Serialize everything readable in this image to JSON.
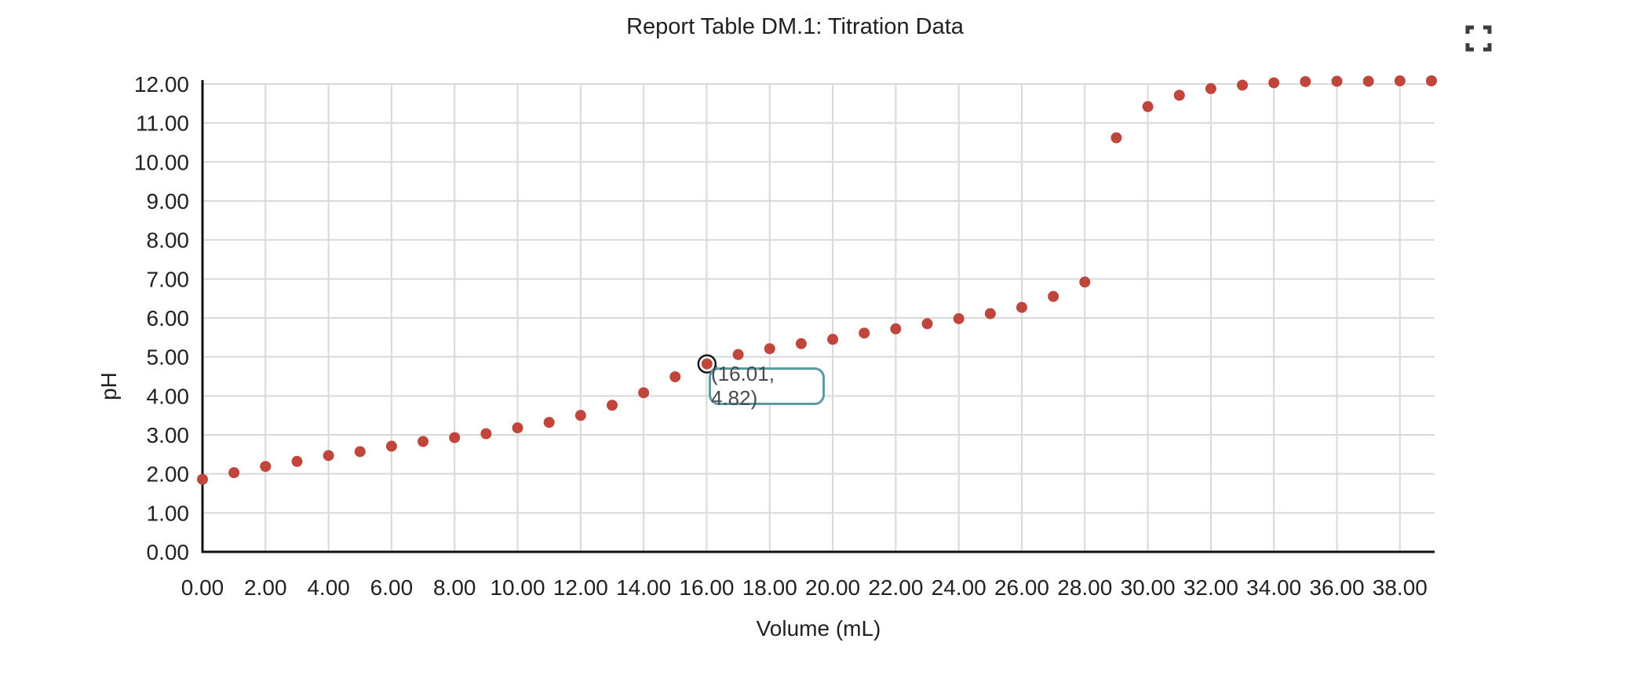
{
  "title": "Report Table DM.1: Titration Data",
  "icons": {
    "fullscreen": {
      "name": "fullscreen-icon",
      "shape": "corner-brackets",
      "color": "#3c3c3c"
    }
  },
  "tooltip": {
    "text": "(16.01, 4.82)",
    "border_color": "#5b9aa9",
    "text_color": "#4a4a4a"
  },
  "colors": {
    "point": "#c0453a",
    "grid": "#d9d9d9",
    "axis": "#111111",
    "text": "#212121",
    "background": "#ffffff",
    "selected_ring": "#111111"
  },
  "chart_data": {
    "type": "scatter",
    "title": "Report Table DM.1: Titration Data",
    "xlabel": "Volume (mL)",
    "ylabel": "pH",
    "xlim": [
      0,
      39.1
    ],
    "ylim": [
      0,
      12.1
    ],
    "grid": true,
    "x_tick_values": [
      0,
      2,
      4,
      6,
      8,
      10,
      12,
      14,
      16,
      18,
      20,
      22,
      24,
      26,
      28,
      30,
      32,
      34,
      36,
      38
    ],
    "x_tick_labels": [
      "0.00",
      "2.00",
      "4.00",
      "6.00",
      "8.00",
      "10.00",
      "12.00",
      "14.00",
      "16.00",
      "18.00",
      "20.00",
      "22.00",
      "24.00",
      "26.00",
      "28.00",
      "30.00",
      "32.00",
      "34.00",
      "36.00",
      "38.00"
    ],
    "y_tick_values": [
      0,
      1,
      2,
      3,
      4,
      5,
      6,
      7,
      8,
      9,
      10,
      11,
      12
    ],
    "y_tick_labels": [
      "0.00",
      "1.00",
      "2.00",
      "3.00",
      "4.00",
      "5.00",
      "6.00",
      "7.00",
      "8.00",
      "9.00",
      "10.00",
      "11.00",
      "12.00"
    ],
    "x": [
      0.0,
      1.0,
      2.0,
      3.0,
      4.0,
      5.0,
      6.0,
      7.0,
      8.0,
      9.0,
      10.0,
      11.0,
      12.0,
      13.0,
      14.0,
      15.0,
      16.01,
      17.0,
      18.0,
      19.0,
      20.0,
      21.0,
      22.0,
      23.0,
      24.0,
      25.0,
      26.0,
      27.0,
      28.0,
      29.0,
      30.0,
      31.0,
      32.0,
      33.0,
      34.0,
      35.0,
      36.0,
      37.0,
      38.0,
      39.0
    ],
    "y": [
      1.86,
      2.03,
      2.19,
      2.32,
      2.47,
      2.57,
      2.71,
      2.83,
      2.93,
      3.03,
      3.18,
      3.32,
      3.5,
      3.76,
      4.08,
      4.49,
      4.82,
      5.06,
      5.21,
      5.34,
      5.45,
      5.61,
      5.72,
      5.85,
      5.98,
      6.11,
      6.27,
      6.55,
      6.92,
      10.62,
      11.42,
      11.71,
      11.88,
      11.97,
      12.03,
      12.06,
      12.07,
      12.07,
      12.08,
      12.08
    ],
    "selected_index": 16,
    "selected_label": "(16.01, 4.82)"
  }
}
